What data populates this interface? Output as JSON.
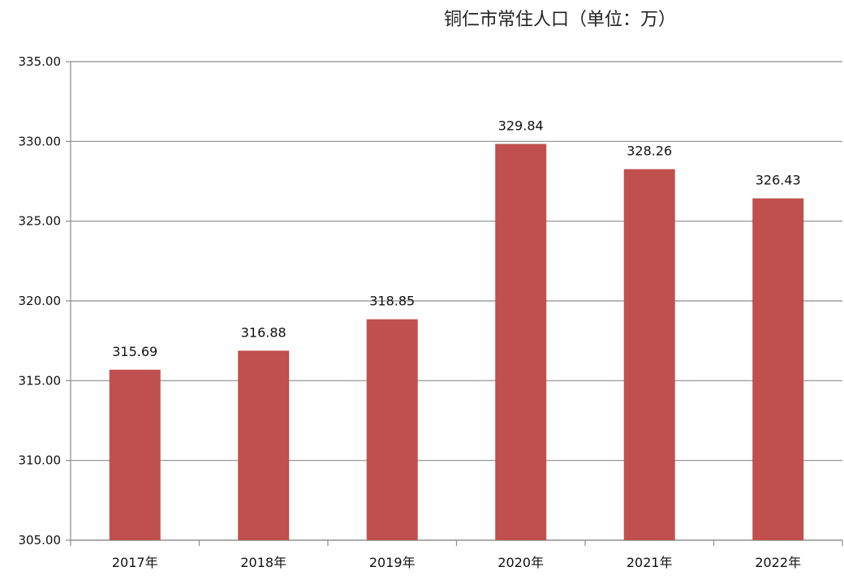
{
  "chart_data": {
    "type": "bar",
    "title": "铜仁市常住人口（单位：万）",
    "categories": [
      "2017年",
      "2018年",
      "2019年",
      "2020年",
      "2021年",
      "2022年"
    ],
    "series": [
      {
        "values": [
          315.69,
          316.88,
          318.85,
          329.84,
          328.26,
          326.43
        ]
      }
    ],
    "data_labels": [
      "315.69",
      "316.88",
      "318.85",
      "329.84",
      "328.26",
      "326.43"
    ],
    "xlabel": "",
    "ylabel": "",
    "ylim": [
      305,
      335
    ],
    "yticks": [
      "305.00",
      "310.00",
      "315.00",
      "320.00",
      "325.00",
      "330.00",
      "335.00"
    ],
    "grid": true,
    "legend": "none",
    "bar_color": "#c0504d",
    "grid_color": "#8c8c8c"
  }
}
